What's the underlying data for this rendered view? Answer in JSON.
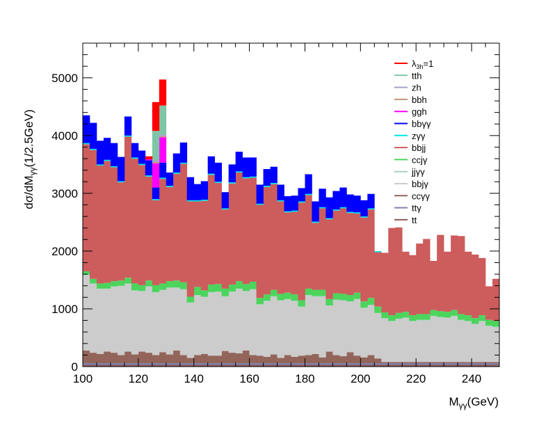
{
  "chart_data": {
    "type": "bar",
    "stacked": true,
    "x_min": 100,
    "bin_width": 2.5,
    "xlim": [
      100,
      250
    ],
    "ylim": [
      0,
      5600
    ],
    "x_ticks": [
      100,
      120,
      140,
      160,
      180,
      200,
      220,
      240
    ],
    "y_ticks": [
      0,
      1000,
      2000,
      3000,
      4000,
      5000
    ],
    "xlabel": "M",
    "xlabel_sub": "γγ",
    "xlabel_unit": "(GeV)",
    "ylabel": "dσ/dM",
    "ylabel_sub": "γγ",
    "ylabel_unit": "(1/2.5GeV)",
    "legend_position": "top-right",
    "legend": [
      {
        "label": "λ",
        "sub": "3h",
        "suffix": "=1",
        "color": "#ff0000"
      },
      {
        "label": "tth",
        "color": "#7fc6a6"
      },
      {
        "label": "zh",
        "color": "#a3a3c6"
      },
      {
        "label": "bbh",
        "color": "#c49274"
      },
      {
        "label": "ggh",
        "color": "#ff00ff"
      },
      {
        "label": "bbγγ",
        "color": "#0000ff"
      },
      {
        "label": "zγγ",
        "color": "#00e5e5"
      },
      {
        "label": "bbjj",
        "color": "#cd5c5c"
      },
      {
        "label": "ccjγ",
        "color": "#4cd45c"
      },
      {
        "label": "jjγγ",
        "color": "#a8d0c0"
      },
      {
        "label": "bbjγ",
        "color": "#cccccc"
      },
      {
        "label": "ccγγ",
        "color": "#93655a"
      },
      {
        "label": "ttγ",
        "color": "#8080a8"
      },
      {
        "label": "tt",
        "color": "#8b5a5a"
      }
    ],
    "series": [
      {
        "name": "tt",
        "color": "#8b5a5a",
        "values": [
          30,
          30,
          30,
          30,
          30,
          30,
          30,
          30,
          30,
          30,
          30,
          30,
          30,
          30,
          30,
          30,
          30,
          30,
          30,
          30,
          30,
          30,
          30,
          30,
          30,
          30,
          30,
          30,
          30,
          30,
          30,
          30,
          30,
          30,
          30,
          30,
          30,
          30,
          30,
          30,
          30,
          30,
          30,
          30,
          30,
          30,
          30,
          30,
          30,
          30,
          30,
          30,
          30,
          30,
          30,
          30,
          30,
          30,
          30,
          30
        ]
      },
      {
        "name": "ttγ",
        "color": "#8080a8",
        "values": [
          30,
          30,
          30,
          30,
          30,
          30,
          30,
          30,
          30,
          30,
          30,
          30,
          30,
          30,
          30,
          30,
          30,
          30,
          30,
          30,
          30,
          30,
          30,
          30,
          30,
          30,
          30,
          30,
          30,
          30,
          30,
          30,
          30,
          30,
          30,
          30,
          30,
          30,
          30,
          30,
          30,
          30,
          30,
          30,
          30,
          30,
          30,
          30,
          30,
          30,
          30,
          30,
          30,
          30,
          30,
          30,
          30,
          30,
          30,
          30
        ]
      },
      {
        "name": "ccγγ",
        "color": "#93655a",
        "values": [
          220,
          180,
          160,
          200,
          180,
          140,
          200,
          150,
          200,
          180,
          140,
          190,
          150,
          220,
          140,
          90,
          140,
          160,
          130,
          130,
          210,
          180,
          170,
          220,
          140,
          130,
          110,
          150,
          90,
          140,
          110,
          130,
          140,
          160,
          100,
          200,
          140,
          120,
          190,
          130,
          100,
          140,
          80,
          20,
          20,
          20,
          20,
          20,
          20,
          20,
          20,
          20,
          20,
          20,
          20,
          20,
          20,
          20,
          20,
          20
        ]
      },
      {
        "name": "bbjγ",
        "color": "#cccccc",
        "values": [
          1300,
          1190,
          1120,
          1080,
          1140,
          1190,
          1170,
          1100,
          1040,
          1140,
          1080,
          1070,
          1150,
          1080,
          1130,
          950,
          1030,
          980,
          1090,
          1100,
          940,
          1050,
          1110,
          1020,
          1130,
          880,
          960,
          1000,
          990,
          960,
          960,
          840,
          1030,
          990,
          1050,
          790,
          950,
          960,
          870,
          970,
          850,
          860,
          780,
          750,
          700,
          740,
          760,
          700,
          720,
          720,
          790,
          770,
          760,
          790,
          720,
          700,
          650,
          700,
          620,
          600
        ]
      },
      {
        "name": "jjγγ",
        "color": "#a8d0c0",
        "values": [
          10,
          10,
          10,
          10,
          10,
          10,
          10,
          10,
          10,
          10,
          10,
          10,
          10,
          10,
          10,
          10,
          10,
          10,
          10,
          10,
          10,
          10,
          10,
          10,
          10,
          10,
          10,
          10,
          10,
          10,
          10,
          10,
          10,
          10,
          10,
          10,
          10,
          10,
          10,
          10,
          10,
          10,
          10,
          10,
          10,
          10,
          10,
          10,
          10,
          10,
          10,
          10,
          10,
          10,
          10,
          10,
          10,
          10,
          10,
          10
        ]
      },
      {
        "name": "ccjγ",
        "color": "#4cd45c",
        "values": [
          60,
          80,
          90,
          100,
          90,
          90,
          100,
          120,
          100,
          100,
          120,
          110,
          110,
          120,
          120,
          100,
          140,
          110,
          130,
          130,
          130,
          120,
          130,
          120,
          130,
          110,
          110,
          110,
          110,
          110,
          110,
          110,
          110,
          110,
          110,
          110,
          110,
          110,
          110,
          110,
          110,
          120,
          110,
          100,
          100,
          100,
          100,
          100,
          100,
          100,
          100,
          100,
          100,
          100,
          100,
          100,
          100,
          100,
          100,
          100
        ]
      },
      {
        "name": "bbjj",
        "color": "#cd5c5c",
        "values": [
          2200,
          2230,
          2040,
          2110,
          1970,
          1700,
          2440,
          2160,
          2080,
          1800,
          1470,
          1810,
          1630,
          1850,
          2050,
          1650,
          1480,
          1550,
          1900,
          1750,
          1370,
          1750,
          1880,
          1830,
          1800,
          1610,
          1860,
          1830,
          1600,
          1390,
          1430,
          1690,
          1620,
          1160,
          1410,
          1380,
          1430,
          1480,
          1420,
          1370,
          1450,
          1530,
          940,
          1030,
          1510,
          1480,
          1040,
          1040,
          1220,
          1300,
          850,
          1320,
          1040,
          1290,
          1350,
          1100,
          1100,
          990,
          580,
          730
        ]
      },
      {
        "name": "zγγ",
        "color": "#00e5e5",
        "values": [
          20,
          20,
          20,
          20,
          20,
          20,
          20,
          20,
          20,
          20,
          20,
          20,
          20,
          20,
          20,
          20,
          20,
          20,
          20,
          20,
          20,
          20,
          20,
          20,
          20,
          20,
          20,
          20,
          20,
          20,
          20,
          20,
          20,
          20,
          20,
          20,
          20,
          20,
          20,
          20,
          20,
          20,
          20,
          0,
          0,
          0,
          0,
          0,
          0,
          0,
          0,
          0,
          0,
          0,
          0,
          0,
          0,
          0,
          0,
          0
        ]
      },
      {
        "name": "bbγγ",
        "color": "#0000ff",
        "values": [
          480,
          450,
          410,
          380,
          400,
          420,
          330,
          250,
          230,
          260,
          200,
          260,
          230,
          330,
          350,
          400,
          280,
          320,
          300,
          330,
          280,
          310,
          340,
          340,
          330,
          330,
          290,
          280,
          270,
          260,
          260,
          230,
          340,
          350,
          320,
          360,
          320,
          340,
          300,
          290,
          280,
          250,
          0,
          0,
          0,
          0,
          0,
          0,
          0,
          0,
          0,
          0,
          0,
          0,
          0,
          0,
          0,
          0,
          0,
          0
        ]
      },
      {
        "name": "ggh",
        "color": "#ff00ff",
        "values": [
          0,
          0,
          0,
          0,
          0,
          0,
          0,
          0,
          0,
          20,
          420,
          440,
          0,
          0,
          0,
          0,
          0,
          0,
          0,
          0,
          0,
          0,
          0,
          0,
          0,
          0,
          0,
          0,
          0,
          0,
          0,
          0,
          0,
          0,
          0,
          0,
          0,
          0,
          0,
          0,
          0,
          0,
          0,
          0,
          0,
          0,
          0,
          0,
          0,
          0,
          0,
          0,
          0,
          0,
          0,
          0,
          0,
          0,
          0,
          0
        ]
      },
      {
        "name": "bbh",
        "color": "#c49274",
        "values": [
          0,
          0,
          0,
          0,
          0,
          0,
          0,
          0,
          0,
          0,
          20,
          20,
          0,
          0,
          0,
          0,
          0,
          0,
          0,
          0,
          0,
          0,
          0,
          0,
          0,
          0,
          0,
          0,
          0,
          0,
          0,
          0,
          0,
          0,
          0,
          0,
          0,
          0,
          0,
          0,
          0,
          0,
          0,
          0,
          0,
          0,
          0,
          0,
          0,
          0,
          0,
          0,
          0,
          0,
          0,
          0,
          0,
          0,
          0,
          0
        ]
      },
      {
        "name": "zh",
        "color": "#a3a3c6",
        "values": [
          0,
          0,
          0,
          0,
          0,
          0,
          0,
          0,
          0,
          0,
          30,
          30,
          0,
          0,
          0,
          0,
          0,
          0,
          0,
          0,
          0,
          0,
          0,
          0,
          0,
          0,
          0,
          0,
          0,
          0,
          0,
          0,
          0,
          0,
          0,
          0,
          0,
          0,
          0,
          0,
          0,
          0,
          0,
          0,
          0,
          0,
          0,
          0,
          0,
          0,
          0,
          0,
          0,
          0,
          0,
          0,
          0,
          0,
          0,
          0
        ]
      },
      {
        "name": "tth",
        "color": "#7fc6a6",
        "values": [
          0,
          0,
          0,
          0,
          0,
          0,
          0,
          0,
          0,
          0,
          510,
          500,
          0,
          0,
          0,
          0,
          0,
          0,
          0,
          0,
          0,
          0,
          0,
          0,
          0,
          0,
          0,
          0,
          0,
          0,
          0,
          0,
          0,
          0,
          0,
          0,
          0,
          0,
          0,
          0,
          0,
          0,
          0,
          0,
          0,
          0,
          0,
          0,
          0,
          0,
          0,
          0,
          0,
          0,
          0,
          0,
          0,
          0,
          0,
          0
        ]
      },
      {
        "name": "λ3h=1",
        "color": "#ff0000",
        "values": [
          0,
          0,
          0,
          0,
          0,
          0,
          0,
          0,
          0,
          50,
          500,
          450,
          0,
          0,
          0,
          0,
          0,
          0,
          0,
          0,
          0,
          0,
          0,
          0,
          0,
          0,
          0,
          0,
          0,
          0,
          0,
          0,
          0,
          0,
          0,
          0,
          0,
          0,
          0,
          0,
          0,
          0,
          0,
          0,
          0,
          0,
          0,
          0,
          0,
          0,
          0,
          0,
          0,
          0,
          0,
          0,
          0,
          0,
          0,
          0
        ]
      }
    ]
  }
}
